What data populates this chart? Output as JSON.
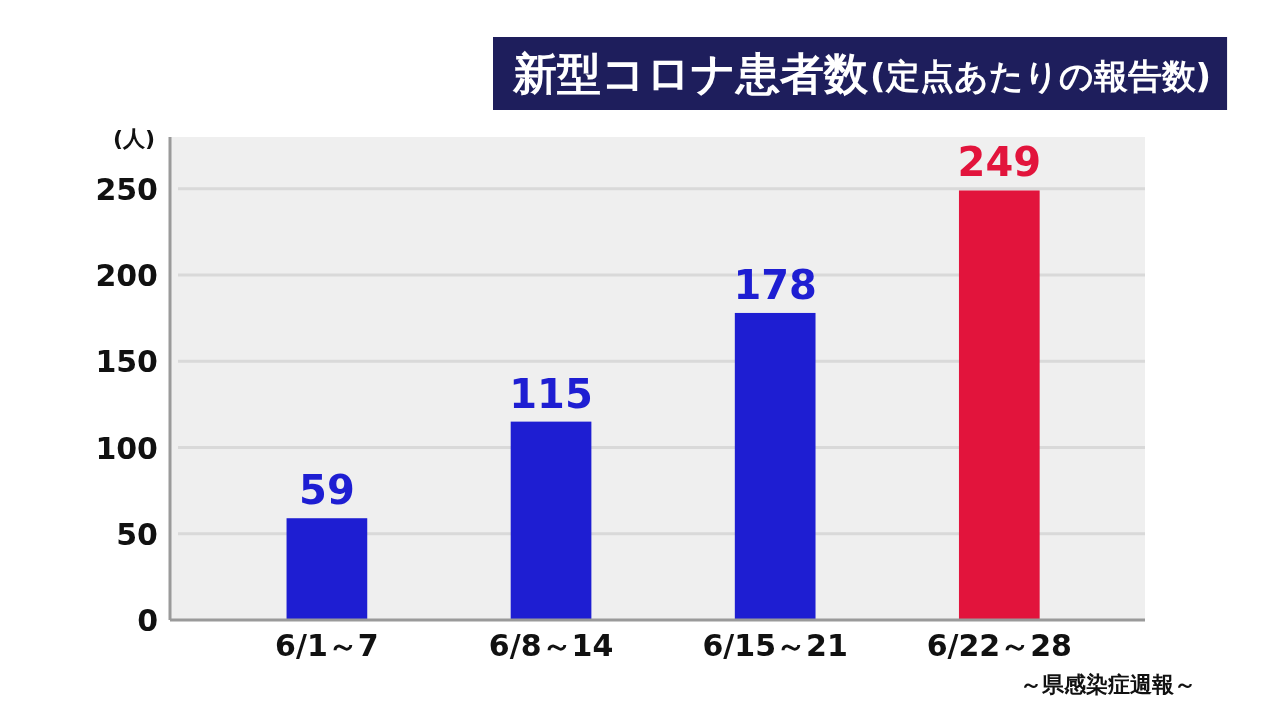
{
  "chart_data": {
    "type": "bar",
    "title": "新型コロナ患者数",
    "subtitle": "(定点あたりの報告数)",
    "ylabel": "(人)",
    "annotations": [
      "～県感染症週報～"
    ],
    "categories": [
      "6/1～7",
      "6/8～14",
      "6/15～21",
      "6/22～28"
    ],
    "values": [
      59,
      115,
      178,
      249
    ],
    "colors": [
      "#1e1ed2",
      "#1e1ed2",
      "#1e1ed2",
      "#e2143c"
    ],
    "ylim": [
      0,
      280
    ],
    "yticks": [
      0,
      50,
      100,
      150,
      200,
      250
    ],
    "grid": "y",
    "data_labels": true
  }
}
